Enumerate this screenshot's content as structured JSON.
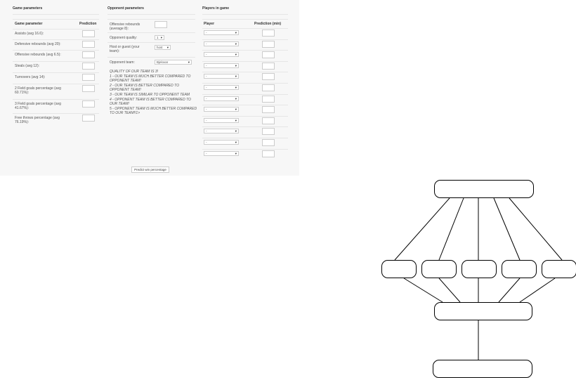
{
  "game": {
    "title": "Game parameters",
    "col_param": "Game parameter",
    "col_pred": "Prediction",
    "rows": [
      {
        "label": "Assists (avg 16.6):"
      },
      {
        "label": "Defensive rebounds (avg 20):"
      },
      {
        "label": "Offensive rebounds (avg 6.5):"
      },
      {
        "label": "Steals (avg 12):"
      },
      {
        "label": "Turnovers (avg 14):"
      },
      {
        "label": "2 Field goals percentage (avg 60.71%):"
      },
      {
        "label": "3 Field goals percentage (avg 41.67%):"
      },
      {
        "label": "Free throws percentage (avg 76.19%):"
      }
    ]
  },
  "opponent": {
    "title": "Opponent parameters",
    "off_reb": "Offensive rebounds (average 8):",
    "quality_label": "Opponent quality:",
    "quality_value": "1",
    "host_label": "Host or guest (your team):",
    "host_value": "host",
    "team_label": "Opponent team:",
    "team_value": "Bjelovar",
    "notes": [
      "QUALITY OF OUR TEAM IS 3!",
      "1 - OUR TEAM IS MUCH BETTER COMPARED TO OPPONENT TEAM!",
      "2 - OUR TEAM IS BETTER COMPARED TO OPPONENT TEAM!",
      "3 - OUR TEAM IS SIMILAR TO OPPONENT TEAM",
      "4 - OPPONENT TEAM IS BETTER COMPARED TO OUR TEAM!",
      "5 - OPPONENT TEAM IS MUCH BETTER COMPARED TO OUR TEAM!!1>"
    ]
  },
  "players": {
    "title": "Players in game",
    "col_player": "Player",
    "col_pred": "Prediction (min)",
    "select_value": "-",
    "count": 12
  },
  "predict_button": "Predict win percentage"
}
